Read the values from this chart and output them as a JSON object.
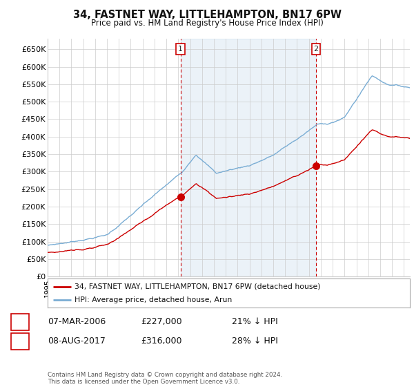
{
  "title": "34, FASTNET WAY, LITTLEHAMPTON, BN17 6PW",
  "subtitle": "Price paid vs. HM Land Registry's House Price Index (HPI)",
  "ylabel_values": [
    "£0",
    "£50K",
    "£100K",
    "£150K",
    "£200K",
    "£250K",
    "£300K",
    "£350K",
    "£400K",
    "£450K",
    "£500K",
    "£550K",
    "£600K",
    "£650K"
  ],
  "ylim": [
    0,
    680000
  ],
  "yticks": [
    0,
    50000,
    100000,
    150000,
    200000,
    250000,
    300000,
    350000,
    400000,
    450000,
    500000,
    550000,
    600000,
    650000
  ],
  "legend_line1": "34, FASTNET WAY, LITTLEHAMPTON, BN17 6PW (detached house)",
  "legend_line2": "HPI: Average price, detached house, Arun",
  "marker1_label": "1",
  "marker1_year": 2006.19,
  "marker1_price_val": 227000,
  "marker1_date": "07-MAR-2006",
  "marker1_price": "£227,000",
  "marker1_hpi": "21% ↓ HPI",
  "marker2_label": "2",
  "marker2_year": 2017.6,
  "marker2_price_val": 316000,
  "marker2_date": "08-AUG-2017",
  "marker2_price": "£316,000",
  "marker2_hpi": "28% ↓ HPI",
  "footer": "Contains HM Land Registry data © Crown copyright and database right 2024.\nThis data is licensed under the Open Government Licence v3.0.",
  "red_color": "#cc0000",
  "blue_color": "#7aadd4",
  "fill_color": "#dceaf5",
  "background_color": "#ffffff",
  "grid_color": "#cccccc",
  "xlim_start": 1995,
  "xlim_end": 2025.5
}
